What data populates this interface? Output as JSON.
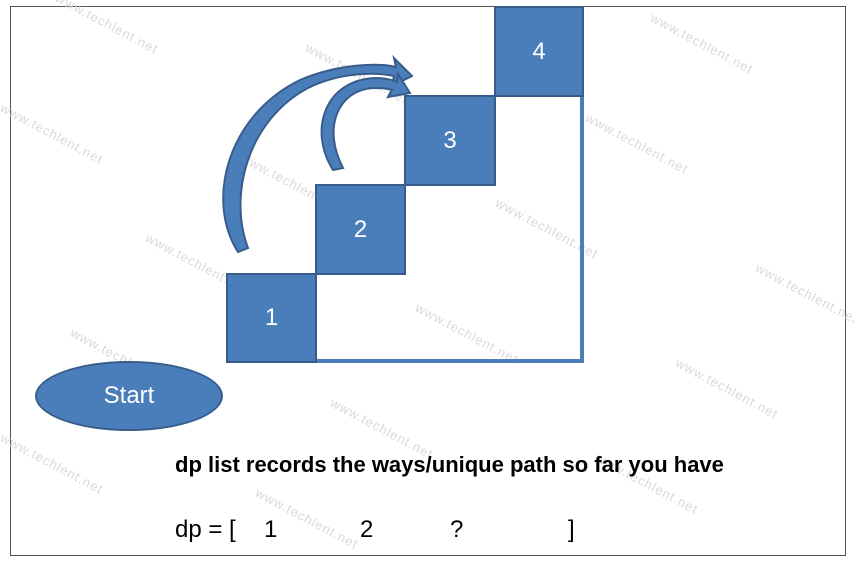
{
  "watermark": "www.techlent.net",
  "steps": [
    {
      "label": "1"
    },
    {
      "label": "2"
    },
    {
      "label": "3"
    },
    {
      "label": "4"
    }
  ],
  "start_label": "Start",
  "caption": "dp list records the ways/unique path so far you have",
  "dp": {
    "prefix": "dp = [",
    "values": [
      "1",
      "2",
      "?"
    ],
    "suffix": "]"
  },
  "colors": {
    "fill": "#4a7ebb",
    "stroke": "#385d8a"
  }
}
